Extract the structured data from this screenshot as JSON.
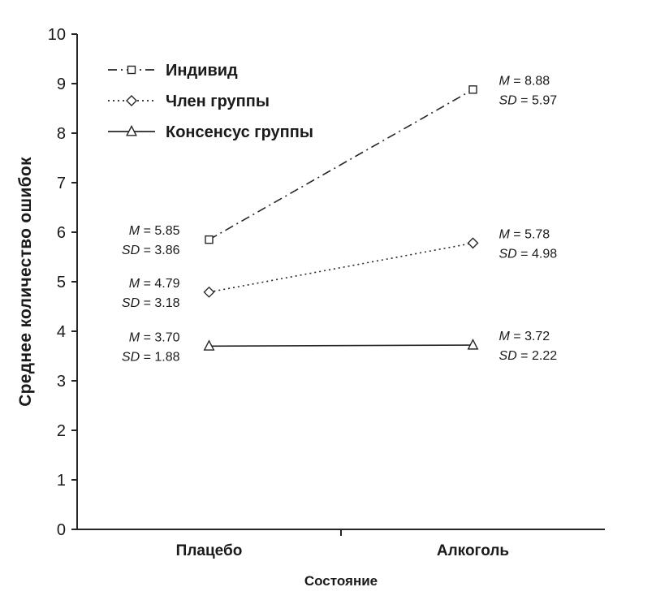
{
  "chart_data": {
    "type": "line",
    "title": "",
    "xlabel": "Состояние",
    "ylabel": "Среднее количество ошибок",
    "categories": [
      "Плацебо",
      "Алкоголь"
    ],
    "ylim": [
      0,
      10
    ],
    "yticks": [
      0,
      1,
      2,
      3,
      4,
      5,
      6,
      7,
      8,
      9,
      10
    ],
    "grid": false,
    "legend_position": "top-left",
    "stat_labels": {
      "mean": "M",
      "sd": "SD"
    },
    "series": [
      {
        "name": "Индивид",
        "marker": "square",
        "line_style": "dash-dot",
        "values": [
          5.85,
          8.88
        ],
        "sd": [
          3.86,
          5.97
        ],
        "annotation_sides": [
          "left",
          "right"
        ]
      },
      {
        "name": "Член группы",
        "marker": "diamond",
        "line_style": "dotted",
        "values": [
          4.79,
          5.78
        ],
        "sd": [
          3.18,
          4.98
        ],
        "annotation_sides": [
          "left",
          "right"
        ]
      },
      {
        "name": "Консенсус группы",
        "marker": "triangle",
        "line_style": "solid",
        "values": [
          3.7,
          3.72
        ],
        "sd": [
          1.88,
          2.22
        ],
        "annotation_sides": [
          "left",
          "right"
        ]
      }
    ],
    "colors": {
      "line": "#262626",
      "text": "#1a1a1a"
    }
  }
}
